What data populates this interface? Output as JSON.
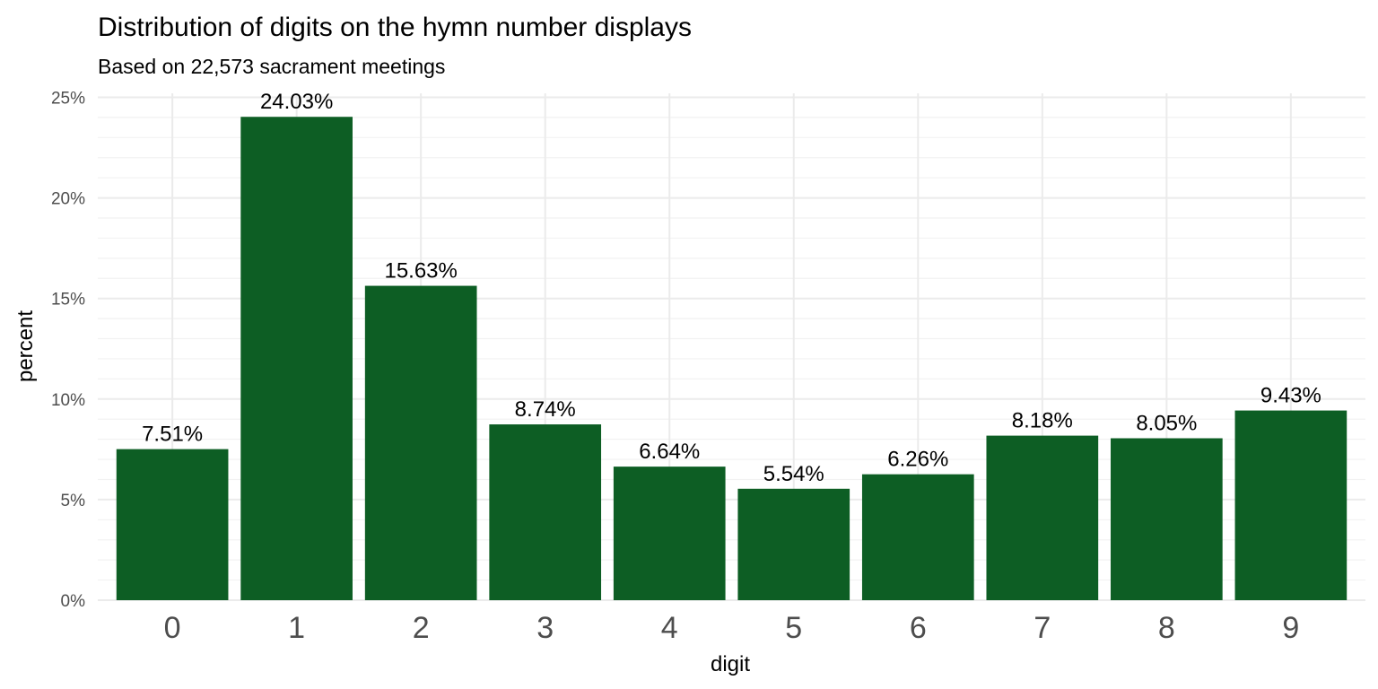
{
  "chart_data": {
    "type": "bar",
    "title": "Distribution of digits on the hymn number displays",
    "subtitle": "Based on 22,573 sacrament meetings",
    "xlabel": "digit",
    "ylabel": "percent",
    "categories": [
      "0",
      "1",
      "2",
      "3",
      "4",
      "5",
      "6",
      "7",
      "8",
      "9"
    ],
    "values": [
      7.51,
      24.03,
      15.63,
      8.74,
      6.64,
      5.54,
      6.26,
      8.18,
      8.05,
      9.43
    ],
    "data_labels": [
      "7.51%",
      "24.03%",
      "15.63%",
      "8.74%",
      "6.64%",
      "5.54%",
      "6.26%",
      "8.18%",
      "8.05%",
      "9.43%"
    ],
    "y_ticks": [
      0,
      5,
      10,
      15,
      20,
      25
    ],
    "y_tick_labels": [
      "0%",
      "5%",
      "10%",
      "15%",
      "20%",
      "25%"
    ],
    "ylim": [
      0,
      25.2
    ],
    "grid": true,
    "bar_color": "#0d5e24",
    "legend": "none"
  }
}
